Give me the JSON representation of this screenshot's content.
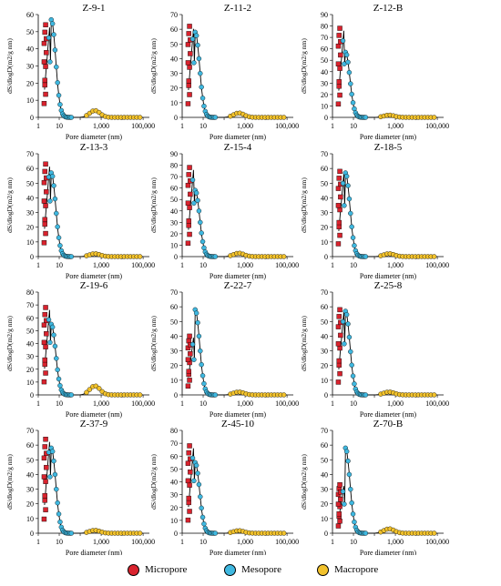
{
  "colors": {
    "micropore": "#d9232e",
    "mesopore": "#3fb8e0",
    "macropore": "#f2c22c",
    "curve": "#000000"
  },
  "legend": {
    "micropore": "Micropore",
    "mesopore": "Mesopore",
    "macropore": "Macropore"
  },
  "chart_data": [
    {
      "type": "scatter",
      "title": "Z-9-1",
      "xlabel": "Pore diameter (nm)",
      "ylabel": "dS/dlogD(m2/g nm)",
      "x_scale": "log",
      "x_ticks": [
        "1",
        "10",
        "1,000",
        "100,000"
      ],
      "ylim": [
        0,
        60
      ],
      "y_ticks": [
        0,
        10,
        20,
        30,
        40,
        50,
        60
      ],
      "peak_micro": 54,
      "peak_meso": 57,
      "tail_macro": 4
    },
    {
      "type": "scatter",
      "title": "Z-11-2",
      "xlabel": "Pore diameter (nm)",
      "ylabel": "dS/dlogD(m2/g nm)",
      "x_scale": "log",
      "x_ticks": [
        "1",
        "10",
        "1,000",
        "100,000"
      ],
      "ylim": [
        0,
        70
      ],
      "y_ticks": [
        0,
        10,
        20,
        30,
        40,
        50,
        60,
        70
      ],
      "peak_micro": 62,
      "peak_meso": 58,
      "tail_macro": 3
    },
    {
      "type": "scatter",
      "title": "Z-12-B",
      "xlabel": "Pore diameter (nm)",
      "ylabel": "dS/dlogD(m2/g nm)",
      "x_scale": "log",
      "x_ticks": [
        "1",
        "10",
        "1,000",
        "100,000"
      ],
      "ylim": [
        0,
        90
      ],
      "y_ticks": [
        0,
        10,
        20,
        30,
        40,
        50,
        60,
        70,
        80,
        90
      ],
      "peak_micro": 78,
      "peak_meso": 57,
      "tail_macro": 2
    },
    {
      "type": "scatter",
      "title": "Z-13-3",
      "xlabel": "Pore diameter (nm)",
      "ylabel": "dS/dlogD(m2/g nm)",
      "x_scale": "log",
      "x_ticks": [
        "1",
        "10",
        "1,000",
        "100,000"
      ],
      "ylim": [
        0,
        70
      ],
      "y_ticks": [
        0,
        10,
        20,
        30,
        40,
        50,
        60,
        70
      ],
      "peak_micro": 63,
      "peak_meso": 57,
      "tail_macro": 2
    },
    {
      "type": "scatter",
      "title": "Z-15-4",
      "xlabel": "Pore diameter (nm)",
      "ylabel": "dS/dlogD(m2/g nm)",
      "x_scale": "log",
      "x_ticks": [
        "1",
        "10",
        "1,000",
        "100,000"
      ],
      "ylim": [
        0,
        90
      ],
      "y_ticks": [
        0,
        10,
        20,
        30,
        40,
        50,
        60,
        70,
        80,
        90
      ],
      "peak_micro": 78,
      "peak_meso": 58,
      "tail_macro": 3
    },
    {
      "type": "scatter",
      "title": "Z-18-5",
      "xlabel": "Pore diameter (nm)",
      "ylabel": "dS/dlogD(m2/g nm)",
      "x_scale": "log",
      "x_ticks": [
        "1",
        "10",
        "1,000",
        "100,000"
      ],
      "ylim": [
        0,
        70
      ],
      "y_ticks": [
        0,
        10,
        20,
        30,
        40,
        50,
        60,
        70
      ],
      "peak_micro": 58,
      "peak_meso": 57,
      "tail_macro": 2
    },
    {
      "type": "scatter",
      "title": "Z-19-6",
      "xlabel": "Pore diameter (nm)",
      "ylabel": "dS/dlogD(m2/g nm)",
      "x_scale": "log",
      "x_ticks": [
        "1",
        "10",
        "1,000",
        "100,000"
      ],
      "ylim": [
        0,
        80
      ],
      "y_ticks": [
        0,
        10,
        20,
        30,
        40,
        50,
        60,
        70,
        80
      ],
      "peak_micro": 68,
      "peak_meso": 55,
      "tail_macro": 7
    },
    {
      "type": "scatter",
      "title": "Z-22-7",
      "xlabel": "Pore diameter (nm)",
      "ylabel": "dS/dlogD(m2/g nm)",
      "x_scale": "log",
      "x_ticks": [
        "1",
        "10",
        "1,000",
        "100,000"
      ],
      "ylim": [
        0,
        70
      ],
      "y_ticks": [
        0,
        10,
        20,
        30,
        40,
        50,
        60,
        70
      ],
      "peak_micro": 40,
      "peak_meso": 58,
      "tail_macro": 2
    },
    {
      "type": "scatter",
      "title": "Z-25-8",
      "xlabel": "Pore diameter (nm)",
      "ylabel": "dS/dlogD(m2/g nm)",
      "x_scale": "log",
      "x_ticks": [
        "1",
        "10",
        "1,000",
        "100,000"
      ],
      "ylim": [
        0,
        70
      ],
      "y_ticks": [
        0,
        10,
        20,
        30,
        40,
        50,
        60,
        70
      ],
      "peak_micro": 58,
      "peak_meso": 57,
      "tail_macro": 2
    },
    {
      "type": "scatter",
      "title": "Z-37-9",
      "xlabel": "Pore diameter (nm)",
      "ylabel": "dS/dlogD(m2/g nm)",
      "x_scale": "log",
      "x_ticks": [
        "1",
        "10",
        "1,000",
        "100,000"
      ],
      "ylim": [
        0,
        70
      ],
      "y_ticks": [
        0,
        10,
        20,
        30,
        40,
        50,
        60,
        70
      ],
      "peak_micro": 64,
      "peak_meso": 58,
      "tail_macro": 2
    },
    {
      "type": "scatter",
      "title": "Z-45-10",
      "xlabel": "Pore diameter (nm)",
      "ylabel": "dS/dlogD(m2/g nm)",
      "x_scale": "log",
      "x_ticks": [
        "1",
        "10",
        "1,000",
        "100,000"
      ],
      "ylim": [
        0,
        80
      ],
      "y_ticks": [
        0,
        10,
        20,
        30,
        40,
        50,
        60,
        70,
        80
      ],
      "peak_micro": 68,
      "peak_meso": 55,
      "tail_macro": 2
    },
    {
      "type": "scatter",
      "title": "Z-70-B",
      "xlabel": "Pore diameter (nm)",
      "ylabel": "dS/dlogD(m2/g nm)",
      "x_scale": "log",
      "x_ticks": [
        "1",
        "10",
        "1,000",
        "100,000"
      ],
      "ylim": [
        0,
        70
      ],
      "y_ticks": [
        0,
        10,
        20,
        30,
        40,
        50,
        60,
        70
      ],
      "peak_micro": 33,
      "peak_meso": 58,
      "tail_macro": 3
    }
  ]
}
